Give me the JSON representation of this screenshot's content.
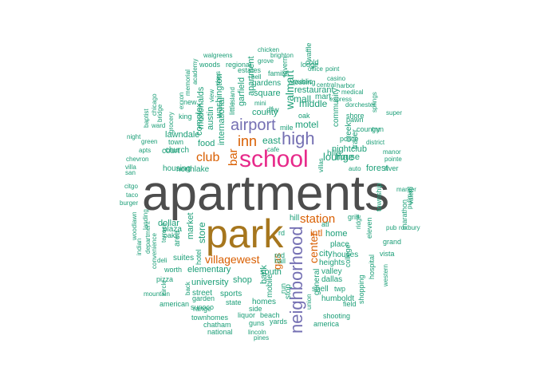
{
  "colors": {
    "dark_gray": "#4d4d4d",
    "brown": "#a6761d",
    "magenta": "#e7298a",
    "purple": "#7570b3",
    "orange": "#d95f02",
    "teal": "#1b9e77",
    "olive": "#66a61e"
  },
  "words": [
    {
      "text": "apartments",
      "color": "dark_gray"
    },
    {
      "text": "park",
      "color": "brown"
    },
    {
      "text": "school",
      "color": "magenta"
    },
    {
      "text": "high",
      "color": "purple"
    },
    {
      "text": "airport",
      "color": "purple"
    },
    {
      "text": "inn",
      "color": "orange"
    },
    {
      "text": "neighborhood",
      "color": "purple"
    },
    {
      "text": "station",
      "color": "orange"
    },
    {
      "text": "club",
      "color": "orange"
    },
    {
      "text": "bar",
      "color": "orange"
    },
    {
      "text": "villagewest",
      "color": "orange"
    },
    {
      "text": "center",
      "color": "orange"
    },
    {
      "text": "lounge",
      "color": "teal"
    },
    {
      "text": "motel",
      "color": "teal"
    },
    {
      "text": "county",
      "color": "teal"
    },
    {
      "text": "east",
      "color": "teal"
    },
    {
      "text": "walmart",
      "color": "teal"
    },
    {
      "text": "mall",
      "color": "teal"
    },
    {
      "text": "middle",
      "color": "teal"
    },
    {
      "text": "square",
      "color": "teal"
    },
    {
      "text": "restaurant",
      "color": "teal"
    },
    {
      "text": "food",
      "color": "teal"
    },
    {
      "text": "store",
      "color": "teal"
    },
    {
      "text": "market",
      "color": "teal"
    },
    {
      "text": "international",
      "color": "teal"
    },
    {
      "text": "complex",
      "color": "teal"
    },
    {
      "text": "house",
      "color": "teal"
    },
    {
      "text": "home",
      "color": "teal"
    },
    {
      "text": "intl",
      "color": "orange"
    },
    {
      "text": "place",
      "color": "teal"
    },
    {
      "text": "city",
      "color": "teal"
    },
    {
      "text": "houses",
      "color": "teal"
    },
    {
      "text": "heights",
      "color": "teal"
    },
    {
      "text": "dallas",
      "color": "teal"
    },
    {
      "text": "valley",
      "color": "teal"
    },
    {
      "text": "south",
      "color": "teal"
    },
    {
      "text": "elementary",
      "color": "teal"
    },
    {
      "text": "university",
      "color": "teal"
    },
    {
      "text": "gas",
      "color": "orange"
    },
    {
      "text": "bank",
      "color": "teal"
    },
    {
      "text": "mobile",
      "color": "teal"
    },
    {
      "text": "street",
      "color": "teal"
    },
    {
      "text": "shop",
      "color": "teal"
    },
    {
      "text": "homes",
      "color": "teal"
    },
    {
      "text": "sports",
      "color": "teal"
    },
    {
      "text": "garden",
      "color": "teal"
    },
    {
      "text": "state",
      "color": "teal"
    },
    {
      "text": "range",
      "color": "teal"
    },
    {
      "text": "side",
      "color": "teal"
    },
    {
      "text": "liquor",
      "color": "teal"
    },
    {
      "text": "beach",
      "color": "teal"
    },
    {
      "text": "yards",
      "color": "teal"
    },
    {
      "text": "guns",
      "color": "teal"
    },
    {
      "text": "townhomes",
      "color": "teal"
    },
    {
      "text": "chatham",
      "color": "teal"
    },
    {
      "text": "national",
      "color": "teal"
    },
    {
      "text": "lincoln",
      "color": "teal"
    },
    {
      "text": "pines",
      "color": "teal"
    },
    {
      "text": "american",
      "color": "teal"
    },
    {
      "text": "sunoco",
      "color": "teal"
    },
    {
      "text": "shooting",
      "color": "teal"
    },
    {
      "text": "america",
      "color": "teal"
    },
    {
      "text": "field",
      "color": "teal"
    },
    {
      "text": "humboldt",
      "color": "teal"
    },
    {
      "text": "general",
      "color": "teal"
    },
    {
      "text": "union",
      "color": "teal"
    },
    {
      "text": "shell",
      "color": "teal"
    },
    {
      "text": "twp",
      "color": "teal"
    },
    {
      "text": "college",
      "color": "teal"
    },
    {
      "text": "shopping",
      "color": "teal"
    },
    {
      "text": "hospital",
      "color": "teal"
    },
    {
      "text": "western",
      "color": "teal"
    },
    {
      "text": "vista",
      "color": "teal"
    },
    {
      "text": "grand",
      "color": "teal"
    },
    {
      "text": "roxbury",
      "color": "teal"
    },
    {
      "text": "pullman",
      "color": "teal"
    },
    {
      "text": "marker",
      "color": "teal"
    },
    {
      "text": "marathon",
      "color": "teal"
    },
    {
      "text": "valero",
      "color": "teal"
    },
    {
      "text": "pub",
      "color": "teal"
    },
    {
      "text": "township",
      "color": "teal"
    },
    {
      "text": "eleven",
      "color": "teal"
    },
    {
      "text": "grill",
      "color": "teal"
    },
    {
      "text": "ridge",
      "color": "teal"
    },
    {
      "text": "atl",
      "color": "teal"
    },
    {
      "text": "hill",
      "color": "teal"
    },
    {
      "text": "rd",
      "color": "teal"
    },
    {
      "text": "red",
      "color": "teal"
    },
    {
      "text": "hall",
      "color": "teal"
    },
    {
      "text": "stop",
      "color": "teal"
    },
    {
      "text": "run",
      "color": "teal"
    },
    {
      "text": "dollar",
      "color": "teal"
    },
    {
      "text": "plaza",
      "color": "teal"
    },
    {
      "text": "area",
      "color": "teal"
    },
    {
      "text": "oaks",
      "color": "teal"
    },
    {
      "text": "terrace",
      "color": "teal"
    },
    {
      "text": "suites",
      "color": "teal"
    },
    {
      "text": "hotel",
      "color": "teal"
    },
    {
      "text": "worth",
      "color": "teal"
    },
    {
      "text": "deli",
      "color": "teal"
    },
    {
      "text": "pizza",
      "color": "teal"
    },
    {
      "text": "circle",
      "color": "teal"
    },
    {
      "text": "back",
      "color": "teal"
    },
    {
      "text": "mountain",
      "color": "teal"
    },
    {
      "text": "convenience",
      "color": "teal"
    },
    {
      "text": "department",
      "color": "teal"
    },
    {
      "text": "indian",
      "color": "teal"
    },
    {
      "text": "landing",
      "color": "teal"
    },
    {
      "text": "woodlawn",
      "color": "teal"
    },
    {
      "text": "burger",
      "color": "teal"
    },
    {
      "text": "taco",
      "color": "teal"
    },
    {
      "text": "citgo",
      "color": "teal"
    },
    {
      "text": "san",
      "color": "teal"
    },
    {
      "text": "villa",
      "color": "teal"
    },
    {
      "text": "chevron",
      "color": "teal"
    },
    {
      "text": "apts",
      "color": "teal"
    },
    {
      "text": "night",
      "color": "teal"
    },
    {
      "text": "green",
      "color": "teal"
    },
    {
      "text": "baptist",
      "color": "teal"
    },
    {
      "text": "chicago",
      "color": "teal"
    },
    {
      "text": "bridge",
      "color": "teal"
    },
    {
      "text": "grocery",
      "color": "teal"
    },
    {
      "text": "ward",
      "color": "teal"
    },
    {
      "text": "lawndale",
      "color": "teal"
    },
    {
      "text": "town",
      "color": "teal"
    },
    {
      "text": "church",
      "color": "teal"
    },
    {
      "text": "court",
      "color": "teal"
    },
    {
      "text": "housing",
      "color": "teal"
    },
    {
      "text": "northlake",
      "color": "teal"
    },
    {
      "text": "exxon",
      "color": "teal"
    },
    {
      "text": "memorial",
      "color": "teal"
    },
    {
      "text": "academy",
      "color": "teal"
    },
    {
      "text": "new",
      "color": "teal"
    },
    {
      "text": "king",
      "color": "teal"
    },
    {
      "text": "mcdonalds",
      "color": "teal"
    },
    {
      "text": "austin",
      "color": "teal"
    },
    {
      "text": "washington",
      "color": "teal"
    },
    {
      "text": "days",
      "color": "teal"
    },
    {
      "text": "view",
      "color": "teal"
    },
    {
      "text": "little",
      "color": "teal"
    },
    {
      "text": "island",
      "color": "teal"
    },
    {
      "text": "garfield",
      "color": "teal"
    },
    {
      "text": "apartment",
      "color": "teal"
    },
    {
      "text": "woods",
      "color": "teal"
    },
    {
      "text": "regional",
      "color": "teal"
    },
    {
      "text": "estates",
      "color": "teal"
    },
    {
      "text": "walgreens",
      "color": "teal"
    },
    {
      "text": "chicken",
      "color": "teal"
    },
    {
      "text": "brighton",
      "color": "teal"
    },
    {
      "text": "grove",
      "color": "teal"
    },
    {
      "text": "bell",
      "color": "teal"
    },
    {
      "text": "family",
      "color": "teal"
    },
    {
      "text": "gardens",
      "color": "teal"
    },
    {
      "text": "mini",
      "color": "teal"
    },
    {
      "text": "dfw",
      "color": "teal"
    },
    {
      "text": "mile",
      "color": "teal"
    },
    {
      "text": "cafe",
      "color": "teal"
    },
    {
      "text": "lodge",
      "color": "teal"
    },
    {
      "text": "waffle",
      "color": "teal"
    },
    {
      "text": "cold",
      "color": "teal"
    },
    {
      "text": "office",
      "color": "teal"
    },
    {
      "text": "point",
      "color": "teal"
    },
    {
      "text": "public",
      "color": "teal"
    },
    {
      "text": "crossing",
      "color": "teal"
    },
    {
      "text": "central",
      "color": "teal"
    },
    {
      "text": "harbor",
      "color": "teal"
    },
    {
      "text": "casino",
      "color": "teal"
    },
    {
      "text": "medical",
      "color": "teal"
    },
    {
      "text": "express",
      "color": "teal"
    },
    {
      "text": "dorchester",
      "color": "teal"
    },
    {
      "text": "super",
      "color": "teal"
    },
    {
      "text": "springs",
      "color": "teal"
    },
    {
      "text": "shore",
      "color": "teal"
    },
    {
      "text": "pawn",
      "color": "teal"
    },
    {
      "text": "police",
      "color": "teal"
    },
    {
      "text": "district",
      "color": "teal"
    },
    {
      "text": "country",
      "color": "teal"
    },
    {
      "text": "gun",
      "color": "teal"
    },
    {
      "text": "nightclub",
      "color": "teal"
    },
    {
      "text": "manor",
      "color": "teal"
    },
    {
      "text": "pointe",
      "color": "teal"
    },
    {
      "text": "forest",
      "color": "teal"
    },
    {
      "text": "river",
      "color": "teal"
    },
    {
      "text": "auto",
      "color": "teal"
    },
    {
      "text": "villas",
      "color": "teal"
    },
    {
      "text": "trailer",
      "color": "teal"
    },
    {
      "text": "creek",
      "color": "teal"
    },
    {
      "text": "community",
      "color": "teal"
    },
    {
      "text": "hills",
      "color": "teal"
    },
    {
      "text": "mart",
      "color": "teal"
    },
    {
      "text": "oak",
      "color": "teal"
    },
    {
      "text": "tavern",
      "color": "teal"
    }
  ]
}
